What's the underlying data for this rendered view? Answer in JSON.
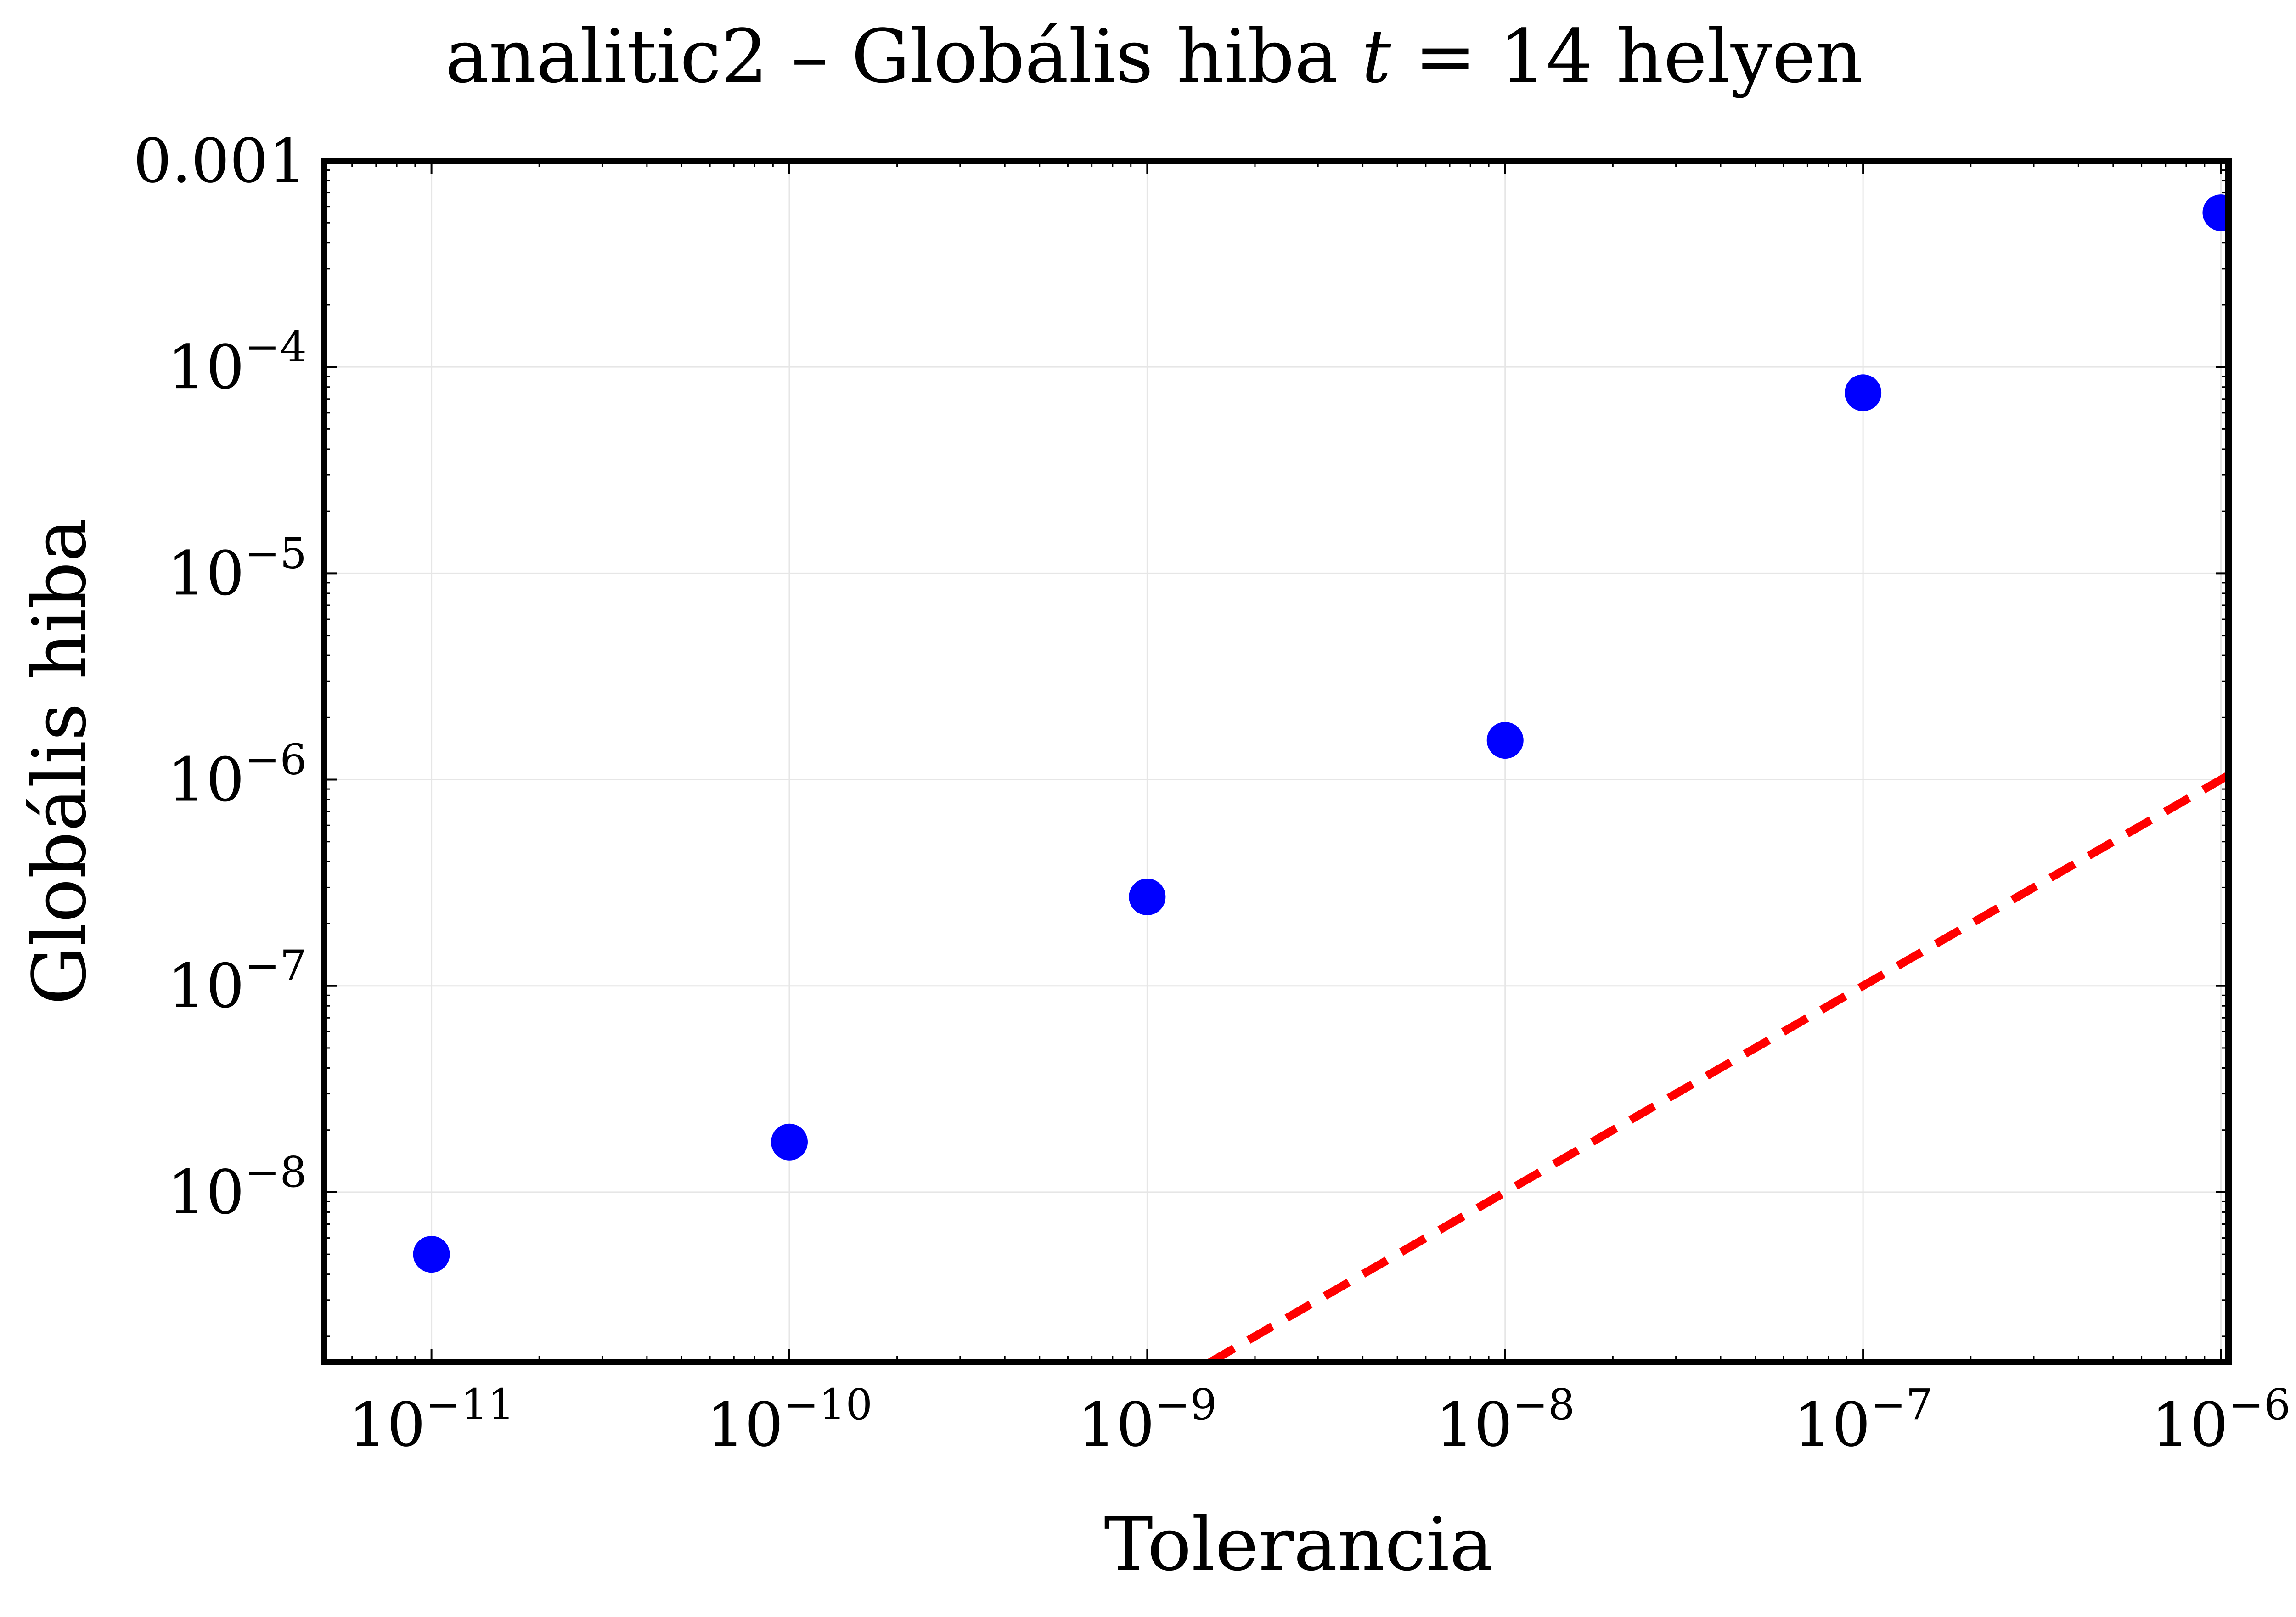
{
  "chart_data": {
    "type": "scatter",
    "title_parts": [
      "analitic2 – Globális hiba ",
      "t",
      " = 14 helyen"
    ],
    "xlabel": "Tolerancia",
    "ylabel": "Globális hiba",
    "x_scale": "log",
    "y_scale": "log",
    "xlim": [
      5e-12,
      1.05e-06
    ],
    "ylim": [
      1.5e-09,
      0.001
    ],
    "grid": true,
    "x_ticks": [
      {
        "value": 1e-11,
        "base": "10",
        "exp": "−11"
      },
      {
        "value": 1e-10,
        "base": "10",
        "exp": "−10"
      },
      {
        "value": 1e-09,
        "base": "10",
        "exp": "−9"
      },
      {
        "value": 1e-08,
        "base": "10",
        "exp": "−8"
      },
      {
        "value": 1e-07,
        "base": "10",
        "exp": "−7"
      },
      {
        "value": 1e-06,
        "base": "10",
        "exp": "−6"
      }
    ],
    "y_ticks": [
      {
        "value": 0.001,
        "base": "0.001",
        "exp": ""
      },
      {
        "value": 0.0001,
        "base": "10",
        "exp": "−4"
      },
      {
        "value": 1e-05,
        "base": "10",
        "exp": "−5"
      },
      {
        "value": 1e-06,
        "base": "10",
        "exp": "−6"
      },
      {
        "value": 1e-07,
        "base": "10",
        "exp": "−7"
      },
      {
        "value": 1e-08,
        "base": "10",
        "exp": "−8"
      }
    ],
    "series": [
      {
        "style": "scatter",
        "color": "#0000ff",
        "x": [
          1e-11,
          1e-10,
          1e-09,
          1e-08,
          1e-07,
          1e-06
        ],
        "y": [
          5e-09,
          1.75e-08,
          2.7e-07,
          1.55e-06,
          7.5e-05,
          0.00056
        ]
      },
      {
        "style": "dashed-line",
        "color": "#ff0000",
        "x": [
          1.5e-09,
          1.05e-06
        ],
        "y": [
          1.5e-09,
          1.05e-06
        ]
      }
    ]
  }
}
